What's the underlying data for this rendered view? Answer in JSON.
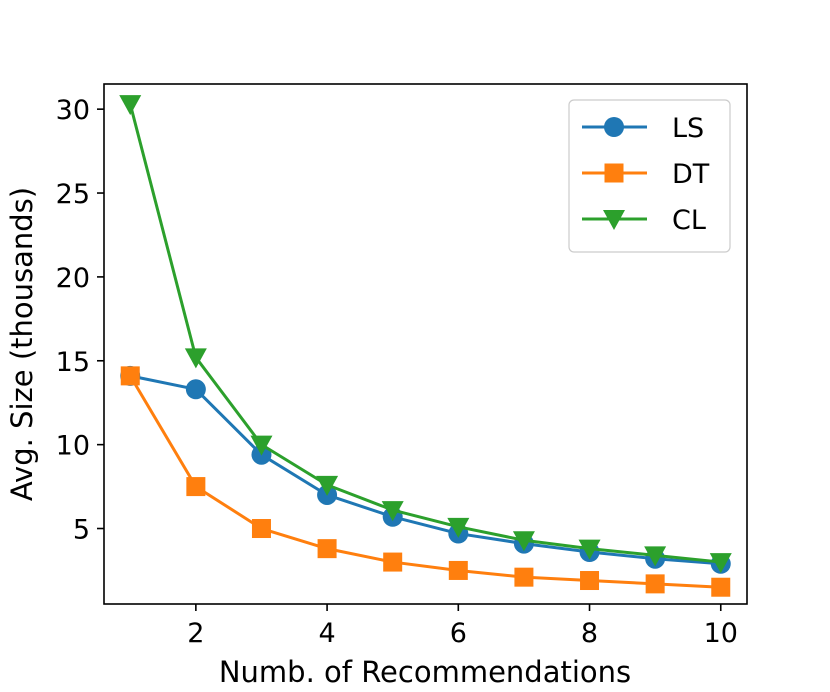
{
  "chart_data": {
    "type": "line",
    "title": "",
    "xlabel": "Numb. of Recommendations",
    "ylabel": "Avg. Size (thousands)",
    "xlim": [
      0.6,
      10.4
    ],
    "ylim": [
      0.5,
      31.5
    ],
    "xticks": [
      2,
      4,
      6,
      8,
      10
    ],
    "yticks": [
      5,
      10,
      15,
      20,
      25,
      30
    ],
    "xtick_labels": [
      "2",
      "4",
      "6",
      "8",
      "10"
    ],
    "ytick_labels": [
      "5",
      "10",
      "15",
      "20",
      "25",
      "30"
    ],
    "legend_position": "top-right",
    "x": [
      1,
      2,
      3,
      4,
      5,
      6,
      7,
      8,
      9,
      10
    ],
    "series": [
      {
        "name": "LS",
        "color": "#1f77b4",
        "marker": "circle",
        "values": [
          14.1,
          13.3,
          9.4,
          7.0,
          5.7,
          4.7,
          4.1,
          3.6,
          3.2,
          2.9
        ]
      },
      {
        "name": "DT",
        "color": "#ff7f0e",
        "marker": "square",
        "values": [
          14.1,
          7.5,
          5.0,
          3.8,
          3.0,
          2.5,
          2.1,
          1.9,
          1.7,
          1.5
        ]
      },
      {
        "name": "CL",
        "color": "#2ca02c",
        "marker": "triangle-down",
        "values": [
          30.3,
          15.2,
          10.0,
          7.6,
          6.1,
          5.1,
          4.3,
          3.8,
          3.4,
          3.0
        ]
      }
    ]
  }
}
